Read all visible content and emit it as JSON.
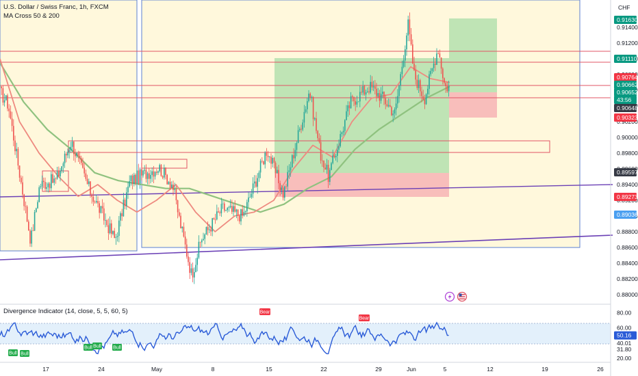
{
  "header": {
    "symbol_title": "U.S. Dollar / Swiss Franc, 1h, FXCM",
    "indicator_label": "MA Cross 50 & 200",
    "currency": "CHF"
  },
  "oscillator": {
    "label": "Divergence Indicator (14, close, 5, 5, 60, 5)",
    "current_value": "50.16",
    "bull_badges": [
      "Bull",
      "Bull",
      "Bull",
      "Bull",
      "Bull"
    ],
    "bear_badges": [
      "Bear",
      "Bear"
    ]
  },
  "price_axis": {
    "ticks": [
      "0.91400",
      "0.91200",
      "0.91000",
      "0.90800",
      "0.90600",
      "0.90400",
      "0.90200",
      "0.90000",
      "0.89800",
      "0.89600",
      "0.89400",
      "0.89200",
      "0.89000",
      "0.88800",
      "0.88600",
      "0.88400",
      "0.88200",
      "0.88000"
    ],
    "tags": [
      {
        "label": "0.91630",
        "value": 0.9163,
        "color": "#089981",
        "text_color": "#ffffff"
      },
      {
        "label": "0.91110",
        "value": 0.9111,
        "color": "#089981",
        "text_color": "#ffffff"
      },
      {
        "label": "0.90764",
        "value": 0.90764,
        "color": "#f23645",
        "text_color": "#ffffff"
      },
      {
        "label": "0.90662",
        "value": 0.90662,
        "color": "#089981",
        "text_color": "#ffffff"
      },
      {
        "label": "0.90652",
        "value": 0.90652,
        "color": "#089981",
        "text_color": "#ffffff"
      },
      {
        "label": "43:56",
        "value": 0.9056,
        "color": "#089981",
        "text_color": "#ffffff"
      },
      {
        "label": "0.90648",
        "value": 0.90648,
        "color": "#363a45",
        "text_color": "#ffffff"
      },
      {
        "label": "0.90323",
        "value": 0.90323,
        "color": "#f23645",
        "text_color": "#ffffff"
      },
      {
        "label": "0.89597",
        "value": 0.89597,
        "color": "#363a45",
        "text_color": "#ffffff"
      },
      {
        "label": "0.89273",
        "value": 0.89273,
        "color": "#f23645",
        "text_color": "#ffffff"
      },
      {
        "label": "0.89036",
        "value": 0.89036,
        "color": "#4a9ff0",
        "text_color": "#ffffff"
      }
    ]
  },
  "osc_axis": {
    "ticks": [
      "80.00",
      "60.00",
      "40.01",
      "31.80",
      "20.00"
    ],
    "tick_values": [
      80,
      60,
      40.01,
      31.8,
      20
    ]
  },
  "time_axis": {
    "labels": [
      "17",
      "24",
      "May",
      "8",
      "15",
      "22",
      "29",
      "Jun",
      "5",
      "12",
      "19",
      "26"
    ]
  },
  "colors": {
    "up": "#26a69a",
    "down": "#ef5350",
    "ma50": "#ee8a80",
    "ma200": "#8fc27f",
    "rsi": "#2a5bd7",
    "box_blue": "#5b7fd1",
    "trend": "#6a3fb5",
    "level_line": "#e05565",
    "yellow_zone": "#fff8dc",
    "profit_zone": "#b8e1b0",
    "loss_zone": "#f7b7b7"
  },
  "chart_data": {
    "type": "candlestick",
    "title": "U.S. Dollar / Swiss Franc, 1h, FXCM",
    "y_range": [
      0.8792,
      0.9175
    ],
    "dates": [
      "Apr 17",
      "Apr 24",
      "May 1",
      "May 8",
      "May 15",
      "May 22",
      "May 29",
      "Jun 1",
      "Jun 5"
    ],
    "close_path": [
      {
        "date": "Apr 11",
        "price": 0.9058
      },
      {
        "date": "Apr 13",
        "price": 0.9042
      },
      {
        "date": "Apr 14",
        "price": 0.8868
      },
      {
        "date": "Apr 16",
        "price": 0.894
      },
      {
        "date": "Apr 18",
        "price": 0.8946
      },
      {
        "date": "Apr 20",
        "price": 0.8995
      },
      {
        "date": "Apr 24",
        "price": 0.8935
      },
      {
        "date": "Apr 27",
        "price": 0.887
      },
      {
        "date": "Apr 28",
        "price": 0.8945
      },
      {
        "date": "May 1",
        "price": 0.8962
      },
      {
        "date": "May 3",
        "price": 0.894
      },
      {
        "date": "May 4",
        "price": 0.8896
      },
      {
        "date": "May 5",
        "price": 0.8825
      },
      {
        "date": "May 6",
        "price": 0.887
      },
      {
        "date": "May 9",
        "price": 0.891
      },
      {
        "date": "May 12",
        "price": 0.89
      },
      {
        "date": "May 15",
        "price": 0.8985
      },
      {
        "date": "May 17",
        "price": 0.8928
      },
      {
        "date": "May 19",
        "price": 0.906
      },
      {
        "date": "May 21",
        "price": 0.898
      },
      {
        "date": "May 22",
        "price": 0.895
      },
      {
        "date": "May 25",
        "price": 0.9045
      },
      {
        "date": "May 27",
        "price": 0.9065
      },
      {
        "date": "May 29",
        "price": 0.905
      },
      {
        "date": "May 31",
        "price": 0.903
      },
      {
        "date": "Jun 1",
        "price": 0.9145
      },
      {
        "date": "Jun 2",
        "price": 0.908
      },
      {
        "date": "Jun 3",
        "price": 0.905
      },
      {
        "date": "Jun 4",
        "price": 0.9115
      },
      {
        "date": "Jun 5",
        "price": 0.9065
      },
      {
        "date": "Jun 6",
        "price": 0.90648
      }
    ],
    "ma50": [
      0.91,
      0.902,
      0.898,
      0.895,
      0.8925,
      0.894,
      0.892,
      0.8905,
      0.892,
      0.894,
      0.8905,
      0.888,
      0.89,
      0.8905,
      0.892,
      0.896,
      0.899,
      0.8975,
      0.902,
      0.905,
      0.9055,
      0.909,
      0.9075,
      0.907
    ],
    "ma200": [
      0.9095,
      0.9045,
      0.901,
      0.8985,
      0.8955,
      0.8945,
      0.894,
      0.8935,
      0.8935,
      0.8925,
      0.8915,
      0.8905,
      0.8915,
      0.8935,
      0.895,
      0.8985,
      0.901,
      0.903,
      0.905,
      0.9065
    ],
    "rsi_range": [
      20,
      85
    ],
    "rsi_levels": [
      60,
      40.01
    ],
    "rsi_last": 50.16,
    "trade_box": {
      "entry": 0.896,
      "target": 0.9111,
      "stop": 0.8927
    },
    "trade_box_2": {
      "entry": 0.9066,
      "target": 0.9163,
      "stop": 0.9032
    }
  }
}
